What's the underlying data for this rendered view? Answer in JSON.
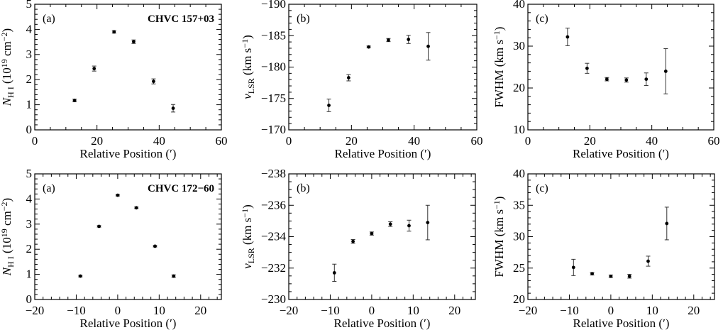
{
  "chart_data": [
    {
      "type": "scatter",
      "tag": "(a)",
      "object": "CHVC 157+03",
      "xlabel": "Relative Position (′)",
      "ylabel": [
        {
          "t": "N",
          "s": "i"
        },
        {
          "t": "H I",
          "s": "sub"
        },
        {
          "t": " (10"
        },
        {
          "t": "19",
          "s": "sup"
        },
        {
          "t": " cm"
        },
        {
          "t": "−2",
          "s": "sup"
        },
        {
          "t": ")"
        }
      ],
      "xlim": [
        0,
        60
      ],
      "ylim": [
        0,
        5
      ],
      "xticks": [
        0,
        20,
        40,
        60
      ],
      "yticks": [
        0,
        1,
        2,
        3,
        4,
        5
      ],
      "xtick_labels": [
        "0",
        "20",
        "40",
        "60"
      ],
      "ytick_labels": [
        "0",
        "1",
        "2",
        "3",
        "4",
        "5"
      ],
      "xminor": 5,
      "yminor": 0.2,
      "x": [
        12.8,
        19.1,
        25.5,
        31.8,
        38.2,
        44.5
      ],
      "y": [
        1.17,
        2.44,
        3.9,
        3.51,
        1.93,
        0.86
      ],
      "yerr": [
        0.05,
        0.1,
        0.05,
        0.07,
        0.1,
        0.15
      ]
    },
    {
      "type": "scatter",
      "tag": "(b)",
      "xlabel": "Relative Position (′)",
      "ylabel": [
        {
          "t": "v",
          "s": "i"
        },
        {
          "t": "LSR",
          "s": "sub"
        },
        {
          "t": " (km s"
        },
        {
          "t": "−1",
          "s": "sup"
        },
        {
          "t": ")"
        }
      ],
      "xlim": [
        0,
        60
      ],
      "ylim": [
        -170,
        -190
      ],
      "xticks": [
        0,
        20,
        40,
        60
      ],
      "yticks": [
        -170,
        -175,
        -180,
        -185,
        -190
      ],
      "xtick_labels": [
        "0",
        "20",
        "40",
        "60"
      ],
      "ytick_labels": [
        "−170",
        "−175",
        "−180",
        "−185",
        "−190"
      ],
      "xminor": 5,
      "yminor": 1,
      "x": [
        12.8,
        19.1,
        25.5,
        31.8,
        38.2,
        44.5
      ],
      "y": [
        -173.9,
        -178.3,
        -183.2,
        -184.3,
        -184.4,
        -183.3
      ],
      "yerr": [
        1.0,
        0.5,
        0.15,
        0.25,
        0.65,
        2.2
      ]
    },
    {
      "type": "scatter",
      "tag": "(c)",
      "xlabel": "Relative Position (′)",
      "ylabel": [
        {
          "t": "FWHM (km s"
        },
        {
          "t": "−1",
          "s": "sup"
        },
        {
          "t": ")"
        }
      ],
      "xlim": [
        0,
        60
      ],
      "ylim": [
        10,
        40
      ],
      "xticks": [
        0,
        20,
        40,
        60
      ],
      "yticks": [
        10,
        20,
        30,
        40
      ],
      "xtick_labels": [
        "0",
        "20",
        "40",
        "60"
      ],
      "ytick_labels": [
        "10",
        "20",
        "30",
        "40"
      ],
      "xminor": 5,
      "yminor": 2,
      "x": [
        12.8,
        19.1,
        25.5,
        31.8,
        38.2,
        44.5
      ],
      "y": [
        32.2,
        24.7,
        22.1,
        21.9,
        22.1,
        24.0
      ],
      "yerr": [
        2.1,
        1.2,
        0.4,
        0.5,
        1.5,
        5.4
      ]
    },
    {
      "type": "scatter",
      "tag": "(a)",
      "object": "CHVC 172−60",
      "xlabel": "Relative Position (′)",
      "ylabel": [
        {
          "t": "N",
          "s": "i"
        },
        {
          "t": "H I",
          "s": "sub"
        },
        {
          "t": " (10"
        },
        {
          "t": "19",
          "s": "sup"
        },
        {
          "t": " cm"
        },
        {
          "t": "−2",
          "s": "sup"
        },
        {
          "t": ")"
        }
      ],
      "xlim": [
        -20,
        25
      ],
      "ylim": [
        0,
        5
      ],
      "xticks": [
        -20,
        -10,
        0,
        10,
        20
      ],
      "yticks": [
        0,
        1,
        2,
        3,
        4,
        5
      ],
      "xtick_labels": [
        "−20",
        "−10",
        "0",
        "10",
        "20"
      ],
      "ytick_labels": [
        "0",
        "1",
        "2",
        "3",
        "4",
        "5"
      ],
      "xminor": 2,
      "yminor": 0.2,
      "x": [
        -9.0,
        -4.5,
        0,
        4.5,
        9.0,
        13.5
      ],
      "y": [
        0.93,
        2.91,
        4.15,
        3.65,
        2.12,
        0.93
      ],
      "yerr": [
        0.03,
        0.03,
        0.03,
        0.03,
        0.03,
        0.05
      ]
    },
    {
      "type": "scatter",
      "tag": "(b)",
      "xlabel": "Relative Position (′)",
      "ylabel": [
        {
          "t": "v",
          "s": "i"
        },
        {
          "t": "LSR",
          "s": "sub"
        },
        {
          "t": " (km s"
        },
        {
          "t": "−1",
          "s": "sup"
        },
        {
          "t": ")"
        }
      ],
      "xlim": [
        -20,
        25
      ],
      "ylim": [
        -230,
        -238
      ],
      "xticks": [
        -20,
        -10,
        0,
        10,
        20
      ],
      "yticks": [
        -230,
        -232,
        -234,
        -236,
        -238
      ],
      "xtick_labels": [
        "−20",
        "−10",
        "0",
        "10",
        "20"
      ],
      "ytick_labels": [
        "−230",
        "−232",
        "−234",
        "−236",
        "−238"
      ],
      "xminor": 2,
      "yminor": 0.5,
      "x": [
        -9.0,
        -4.5,
        0,
        4.5,
        9.0,
        13.5
      ],
      "y": [
        -231.7,
        -233.7,
        -234.2,
        -234.8,
        -234.7,
        -234.9
      ],
      "yerr": [
        0.55,
        0.12,
        0.1,
        0.15,
        0.35,
        1.1
      ]
    },
    {
      "type": "scatter",
      "tag": "(c)",
      "xlabel": "Relative Position (′)",
      "ylabel": [
        {
          "t": "FWHM (km s"
        },
        {
          "t": "−1",
          "s": "sup"
        },
        {
          "t": ")"
        }
      ],
      "xlim": [
        -20,
        25
      ],
      "ylim": [
        20,
        40
      ],
      "xticks": [
        -20,
        -10,
        0,
        10,
        20
      ],
      "yticks": [
        20,
        25,
        30,
        35,
        40
      ],
      "xtick_labels": [
        "−20",
        "−10",
        "0",
        "10",
        "20"
      ],
      "ytick_labels": [
        "20",
        "25",
        "30",
        "35",
        "40"
      ],
      "xminor": 2,
      "yminor": 1,
      "x": [
        -9.0,
        -4.5,
        0,
        4.5,
        9.0,
        13.5
      ],
      "y": [
        25.1,
        24.1,
        23.7,
        23.7,
        26.1,
        32.1
      ],
      "yerr": [
        1.3,
        0.2,
        0.2,
        0.3,
        0.8,
        2.6
      ]
    }
  ]
}
